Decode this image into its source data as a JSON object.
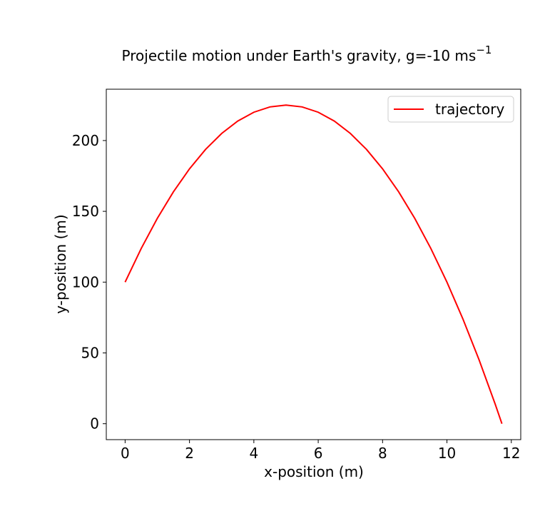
{
  "chart_data": {
    "type": "line",
    "title": "Projectile motion under Earth's gravity, g=-10 ms",
    "title_exponent": "−1",
    "x_label": "x-position (m)",
    "y_label": "y-position (m)",
    "x": [
      0,
      0.5,
      1,
      1.5,
      2,
      2.5,
      3,
      3.5,
      4,
      4.5,
      5,
      5.5,
      6,
      6.5,
      7,
      7.5,
      8,
      8.5,
      9,
      9.5,
      10,
      10.5,
      11,
      11.5,
      11.708
    ],
    "series": [
      {
        "name": "trajectory",
        "color": "#ff0000",
        "values": [
          100,
          123.75,
          145,
          163.75,
          180,
          193.75,
          205,
          213.75,
          220,
          223.75,
          225,
          223.75,
          220,
          213.75,
          205,
          193.75,
          180,
          163.75,
          145,
          123.75,
          100,
          73.75,
          45,
          13.75,
          0
        ]
      }
    ],
    "xlim": [
      -0.585,
      12.293
    ],
    "ylim": [
      -11.25,
      236.25
    ],
    "xticks": [
      0,
      2,
      4,
      6,
      8,
      10,
      12
    ],
    "yticks": [
      0,
      50,
      100,
      150,
      200
    ],
    "grid": false,
    "legend": "upper-right"
  }
}
